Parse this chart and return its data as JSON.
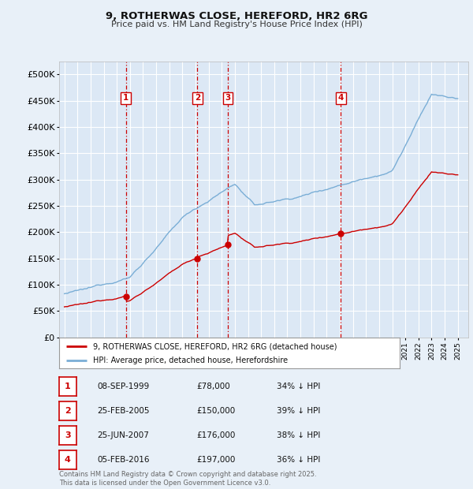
{
  "title_line1": "9, ROTHERWAS CLOSE, HEREFORD, HR2 6RG",
  "title_line2": "Price paid vs. HM Land Registry's House Price Index (HPI)",
  "ylim": [
    0,
    525000
  ],
  "yticks": [
    0,
    50000,
    100000,
    150000,
    200000,
    250000,
    300000,
    350000,
    400000,
    450000,
    500000
  ],
  "ytick_labels": [
    "£0",
    "£50K",
    "£100K",
    "£150K",
    "£200K",
    "£250K",
    "£300K",
    "£350K",
    "£400K",
    "£450K",
    "£500K"
  ],
  "bg_color": "#e8f0f8",
  "plot_bg_color": "#dce8f5",
  "grid_color": "#ffffff",
  "sale_color": "#cc0000",
  "hpi_color": "#7aaed6",
  "vline_color": "#cc0000",
  "transactions": [
    {
      "label": "1",
      "date_str": "08-SEP-1999",
      "x": 1999.69,
      "price": 78000,
      "pct": "34%"
    },
    {
      "label": "2",
      "date_str": "25-FEB-2005",
      "x": 2005.15,
      "price": 150000,
      "pct": "39%"
    },
    {
      "label": "3",
      "date_str": "25-JUN-2007",
      "x": 2007.48,
      "price": 176000,
      "pct": "38%"
    },
    {
      "label": "4",
      "date_str": "05-FEB-2016",
      "x": 2016.09,
      "price": 197000,
      "pct": "36%"
    }
  ],
  "legend_sale_label": "9, ROTHERWAS CLOSE, HEREFORD, HR2 6RG (detached house)",
  "legend_hpi_label": "HPI: Average price, detached house, Herefordshire",
  "footer": "Contains HM Land Registry data © Crown copyright and database right 2025.\nThis data is licensed under the Open Government Licence v3.0.",
  "table_rows": [
    [
      "1",
      "08-SEP-1999",
      "£78,000",
      "34% ↓ HPI"
    ],
    [
      "2",
      "25-FEB-2005",
      "£150,000",
      "39% ↓ HPI"
    ],
    [
      "3",
      "25-JUN-2007",
      "£176,000",
      "38% ↓ HPI"
    ],
    [
      "4",
      "05-FEB-2016",
      "£197,000",
      "36% ↓ HPI"
    ]
  ]
}
